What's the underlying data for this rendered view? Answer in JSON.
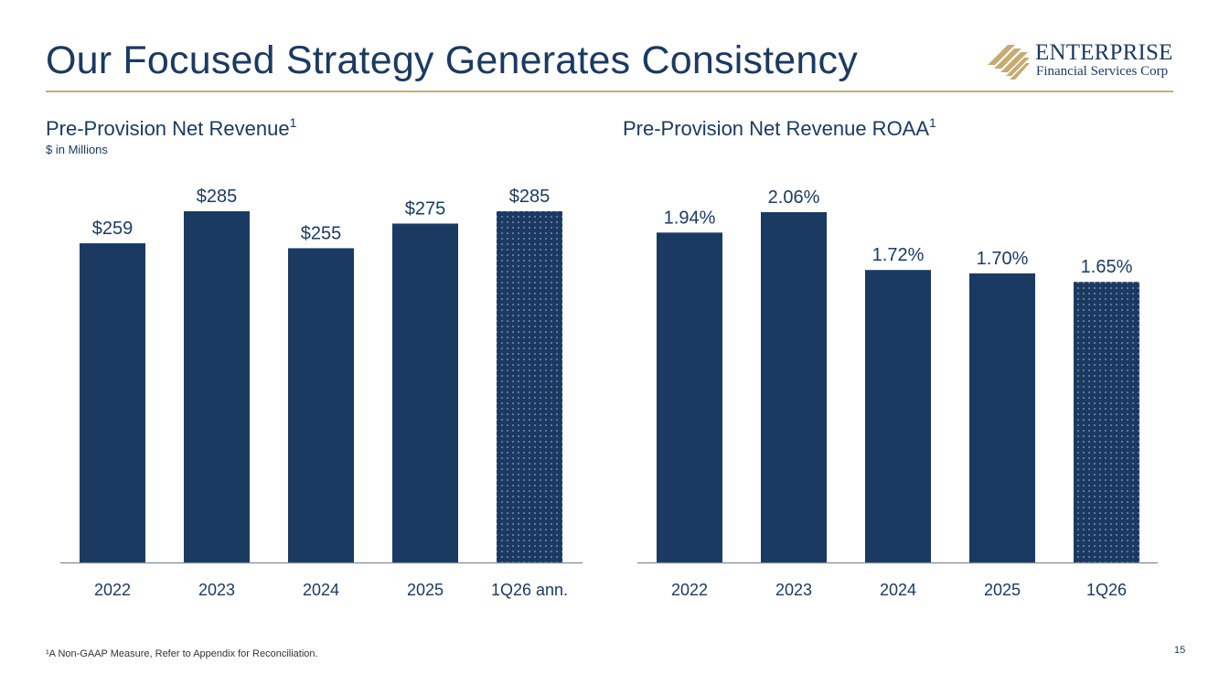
{
  "title": "Our Focused Strategy Generates Consistency",
  "logo": {
    "line1": "ENTERPRISE",
    "line2": "Financial Services Corp"
  },
  "colors": {
    "navy": "#1b3a62",
    "gold": "#c6ab73"
  },
  "footnote": "¹A Non-GAAP Measure, Refer to Appendix for Reconciliation.",
  "page_number": "15",
  "chart_data": [
    {
      "type": "bar",
      "title": "Pre-Provision Net Revenue",
      "title_sup": "1",
      "subtitle": "$ in Millions",
      "categories": [
        "2022",
        "2023",
        "2024",
        "2025",
        "1Q26 ann."
      ],
      "values": [
        259,
        285,
        255,
        275,
        285
      ],
      "value_labels": [
        "$259",
        "$285",
        "$255",
        "$275",
        "$285"
      ],
      "patterned": [
        false,
        false,
        false,
        false,
        true
      ],
      "ylim": [
        0,
        285
      ]
    },
    {
      "type": "bar",
      "title": "Pre-Provision Net Revenue ROAA",
      "title_sup": "1",
      "categories": [
        "2022",
        "2023",
        "2024",
        "2025",
        "1Q26"
      ],
      "values": [
        1.94,
        2.06,
        1.72,
        1.7,
        1.65
      ],
      "value_labels": [
        "1.94%",
        "2.06%",
        "1.72%",
        "1.70%",
        "1.65%"
      ],
      "patterned": [
        false,
        false,
        false,
        false,
        true
      ],
      "ylim": [
        0,
        2.06
      ]
    }
  ]
}
